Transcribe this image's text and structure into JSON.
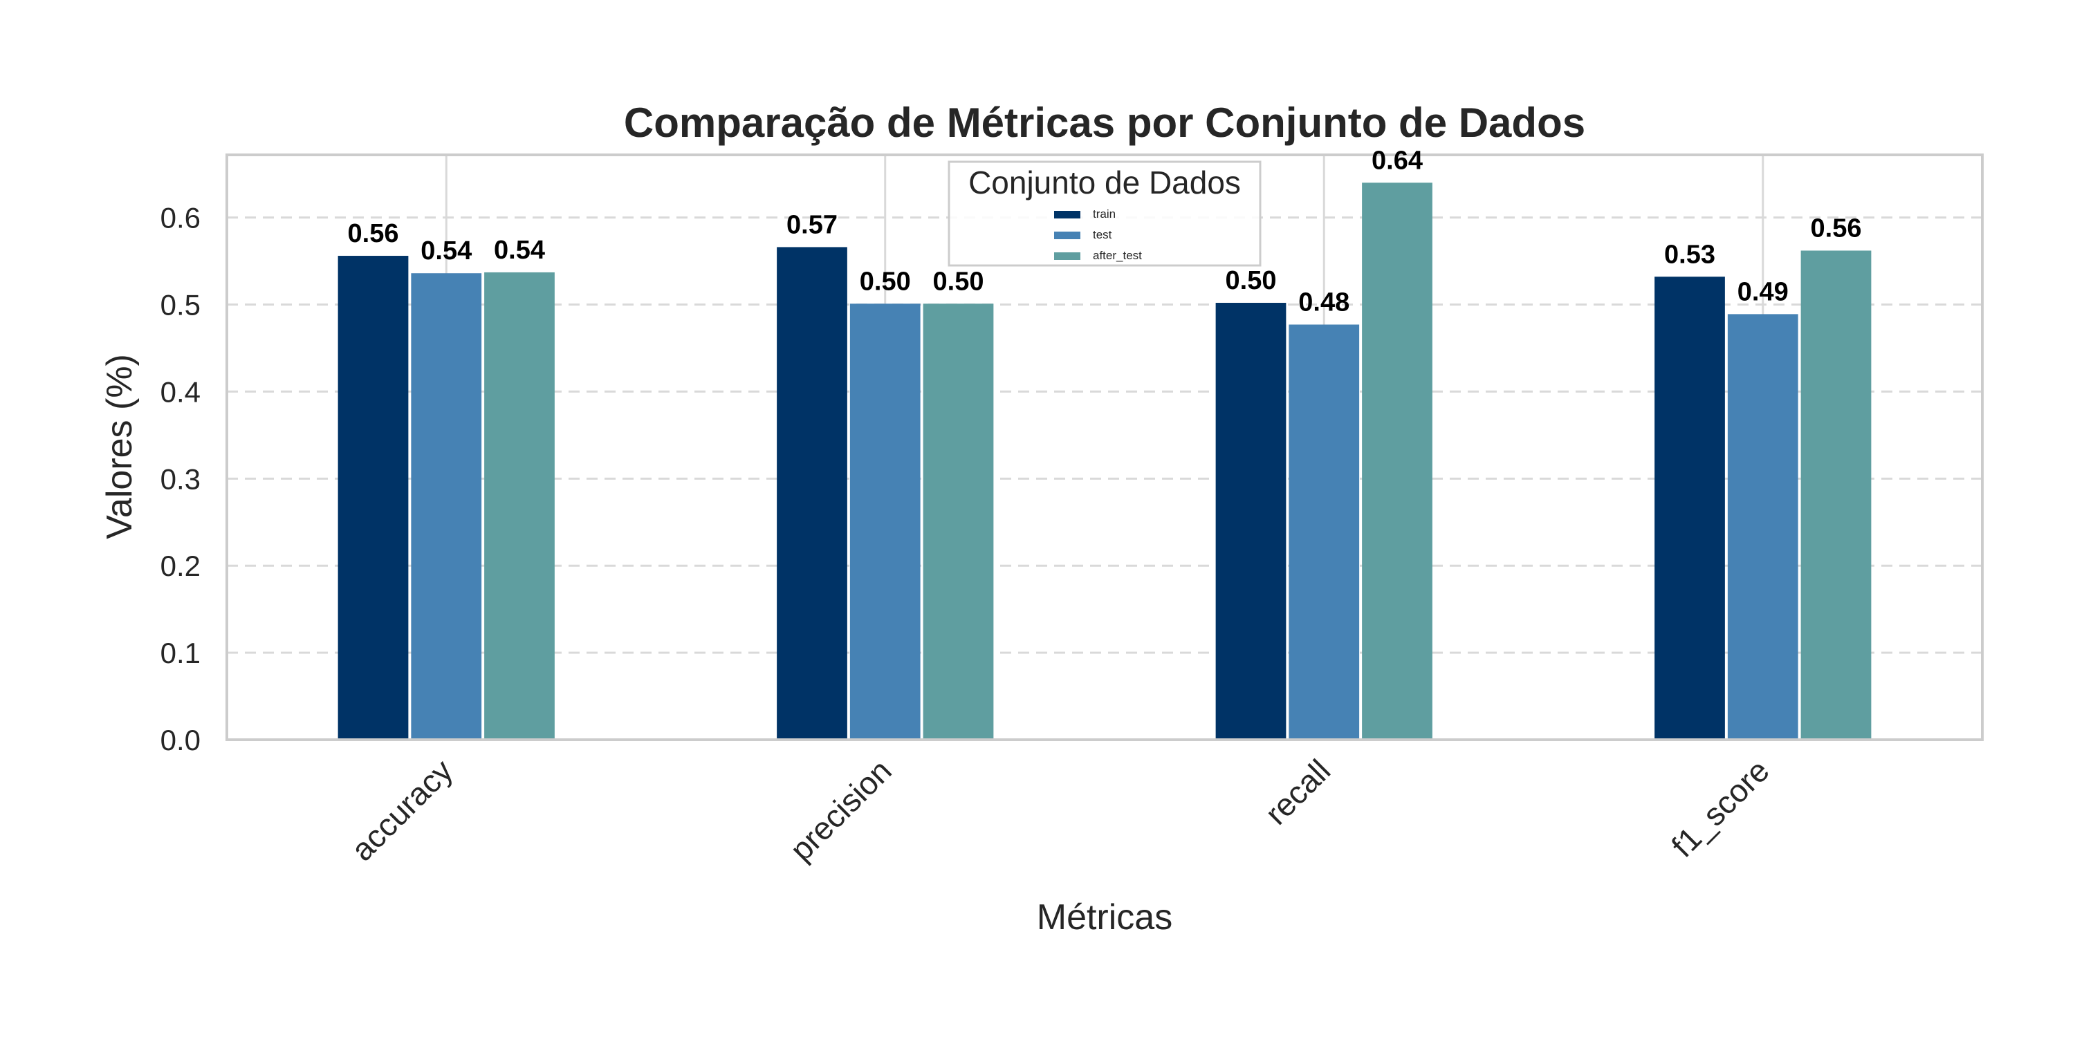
{
  "chart_data": {
    "type": "bar",
    "title": "Comparação de Métricas por Conjunto de Dados",
    "xlabel": "Métricas",
    "ylabel": "Valores (%)",
    "categories": [
      "accuracy",
      "precision",
      "recall",
      "f1_score"
    ],
    "series": [
      {
        "name": "train",
        "color": "#003366",
        "values": [
          0.556,
          0.566,
          0.502,
          0.532
        ],
        "labels": [
          "0.56",
          "0.57",
          "0.50",
          "0.53"
        ]
      },
      {
        "name": "test",
        "color": "#4682B4",
        "values": [
          0.536,
          0.501,
          0.477,
          0.489
        ],
        "labels": [
          "0.54",
          "0.50",
          "0.48",
          "0.49"
        ]
      },
      {
        "name": "after_test",
        "color": "#5F9EA0",
        "values": [
          0.537,
          0.501,
          0.64,
          0.562
        ],
        "labels": [
          "0.54",
          "0.50",
          "0.64",
          "0.56"
        ]
      }
    ],
    "ylim": [
      0,
      0.672
    ],
    "yticks": [
      0.0,
      0.1,
      0.2,
      0.3,
      0.4,
      0.5,
      0.6
    ],
    "ytick_labels": [
      "0.0",
      "0.1",
      "0.2",
      "0.3",
      "0.4",
      "0.5",
      "0.6"
    ],
    "grid": "y-dashed",
    "legend": {
      "title": "Conjunto de Dados",
      "placement": "top-center"
    }
  }
}
